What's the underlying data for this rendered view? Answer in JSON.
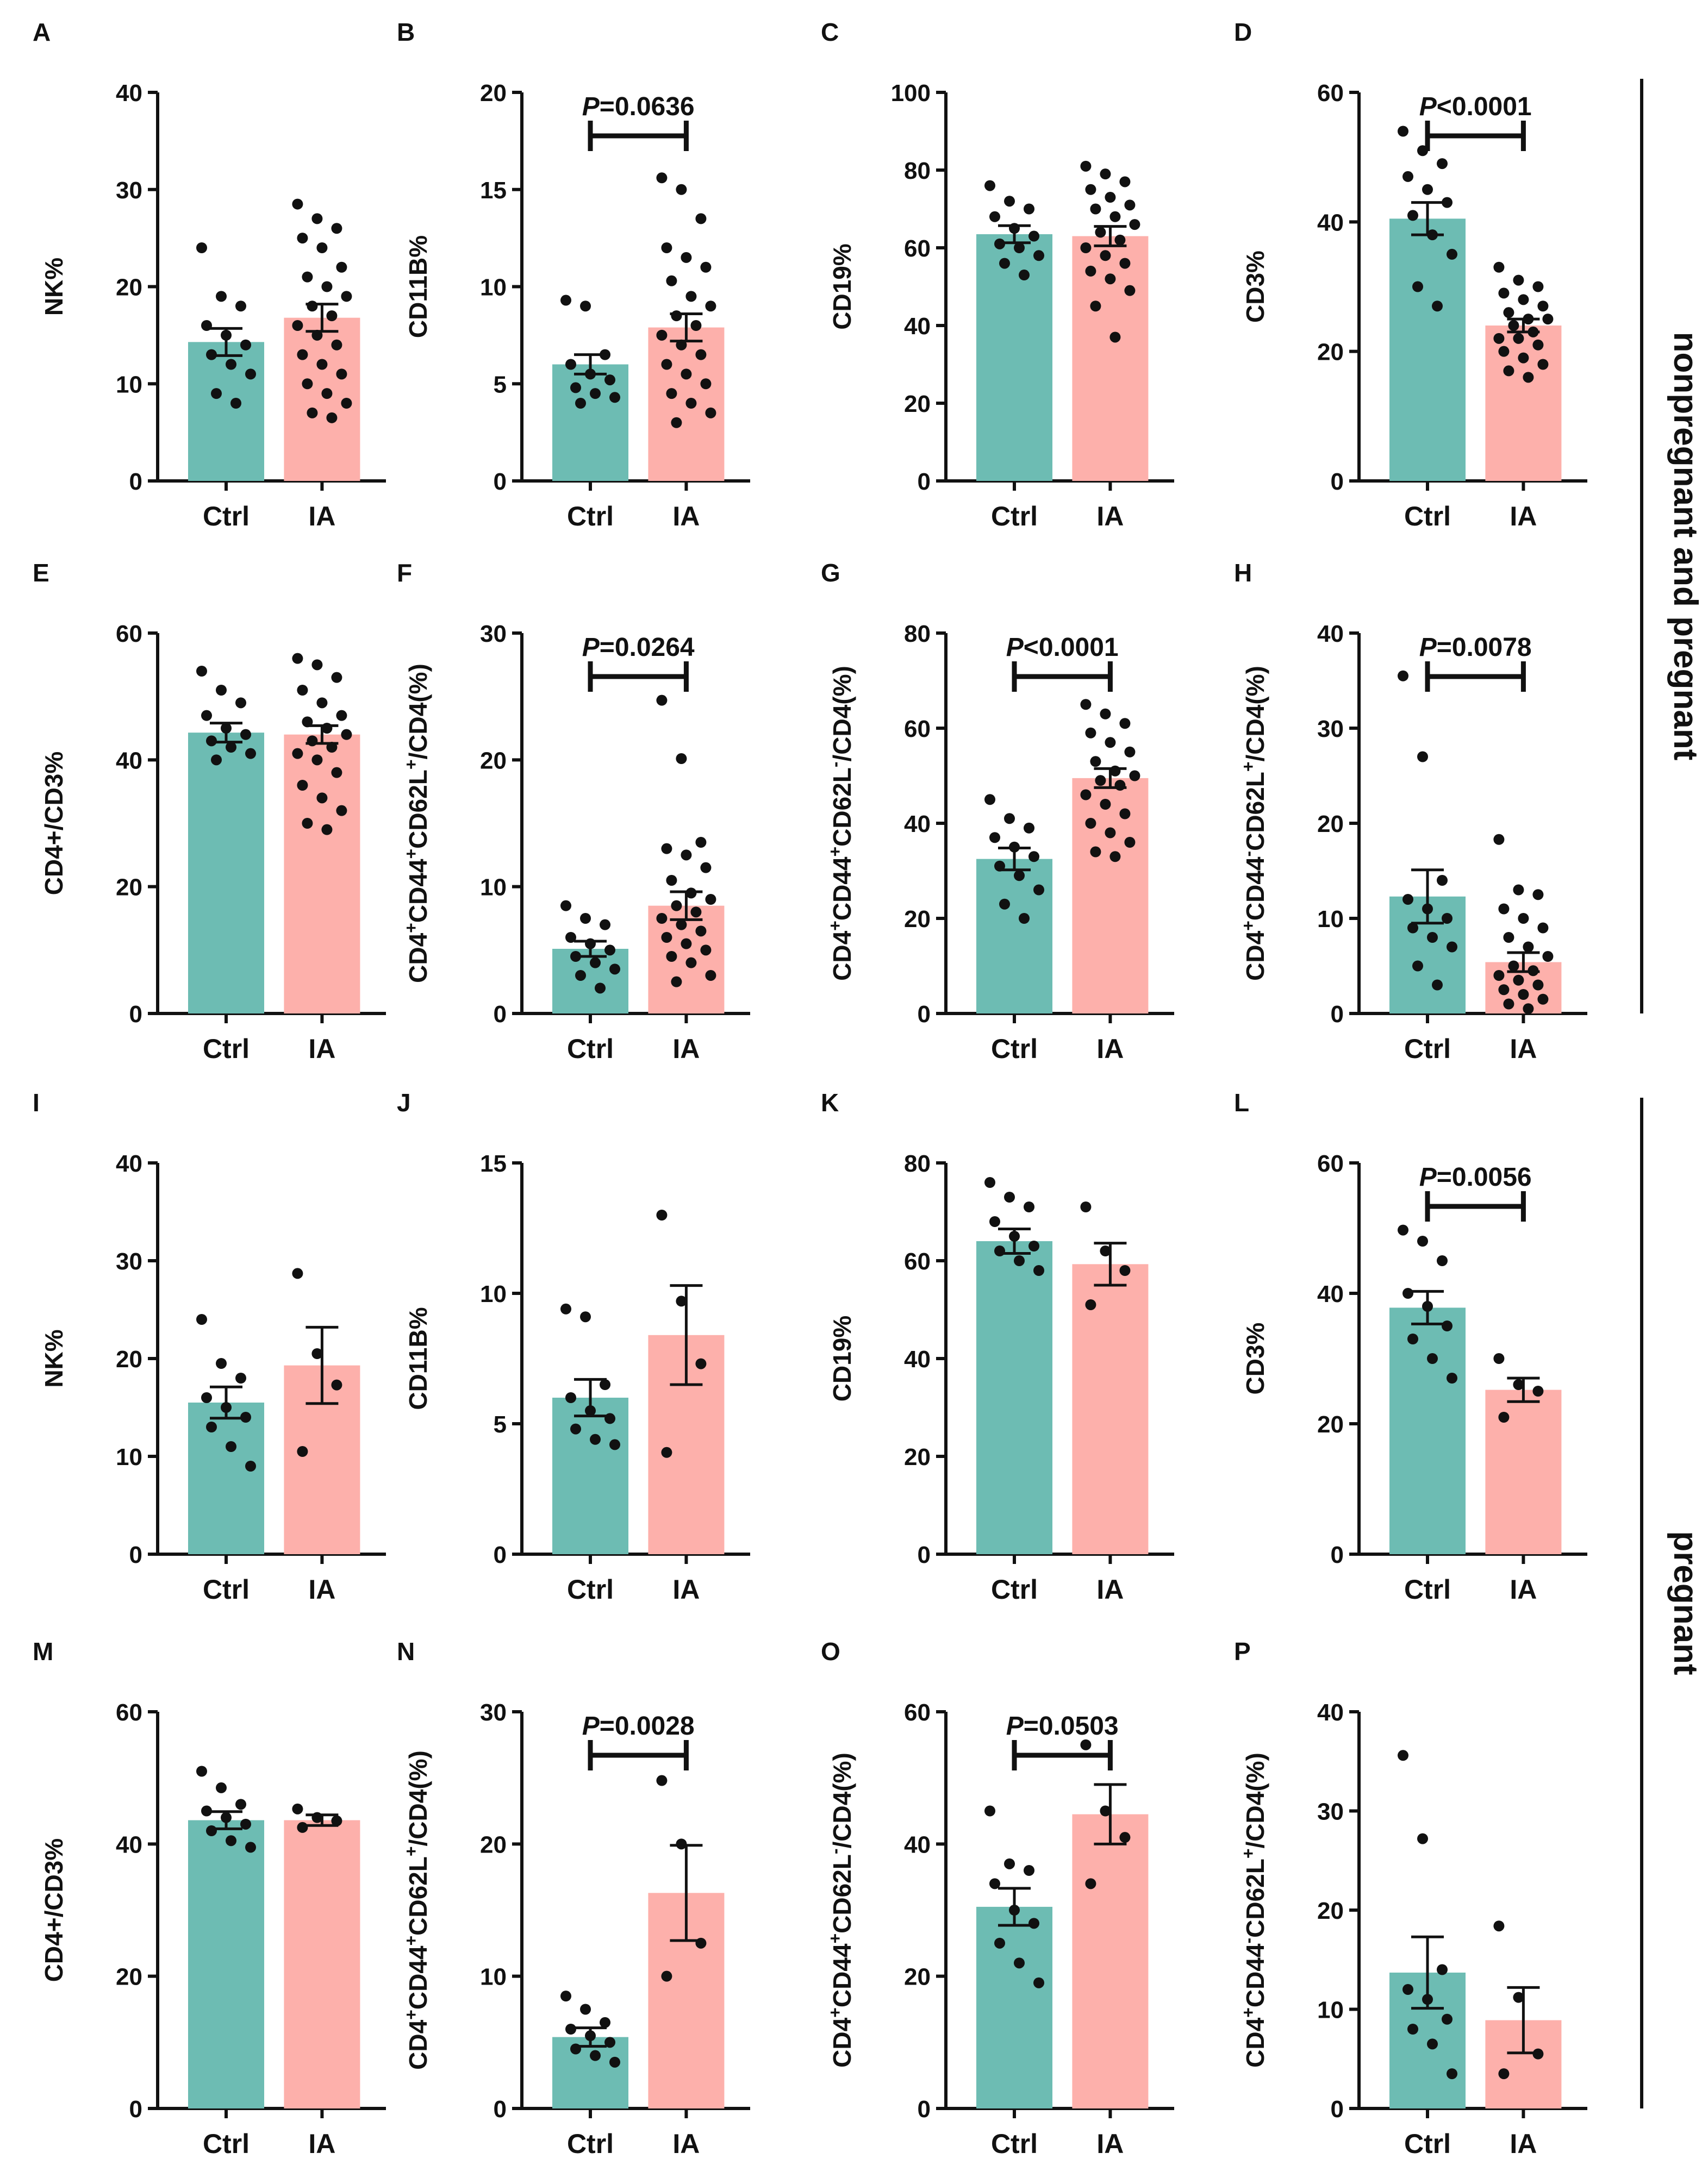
{
  "group_labels": [
    "nonpregnant and pregnant",
    "pregnant"
  ],
  "colors": {
    "ctrl": "#6dbcb3",
    "ia": "#fdb0ab",
    "ink": "#111111"
  },
  "chart_data": [
    {
      "type": "bar",
      "letter": "A",
      "ylabel": "NK%",
      "ylim": [
        0,
        40
      ],
      "yticks": [
        "0",
        "10",
        "20",
        "30",
        "40"
      ],
      "categories": [
        "Ctrl",
        "IA"
      ],
      "values": [
        14.3,
        16.8
      ],
      "sem": [
        1.4,
        1.4
      ],
      "points": [
        [
          24,
          19,
          18,
          16,
          15,
          14,
          13,
          12,
          11,
          9,
          8
        ],
        [
          28.5,
          27,
          26,
          25,
          24,
          22,
          21,
          20,
          19,
          18,
          17,
          16,
          15,
          14,
          13,
          12,
          11,
          10,
          9,
          8,
          7,
          6.5
        ]
      ],
      "significance": null
    },
    {
      "type": "bar",
      "letter": "B",
      "ylabel": "CD11B%",
      "ylim": [
        0,
        20
      ],
      "yticks": [
        "0",
        "5",
        "10",
        "15",
        "20"
      ],
      "categories": [
        "Ctrl",
        "IA"
      ],
      "values": [
        6.0,
        7.9
      ],
      "sem": [
        0.5,
        0.7
      ],
      "points": [
        [
          9.3,
          9.0,
          6.5,
          6.0,
          5.5,
          5.2,
          4.8,
          4.5,
          4.3,
          4.0
        ],
        [
          15.6,
          15.0,
          13.5,
          12.0,
          11.5,
          11.0,
          10.3,
          9.5,
          9.0,
          8.5,
          8.0,
          7.5,
          7.0,
          6.5,
          6.0,
          5.5,
          5.0,
          4.5,
          4.0,
          3.5,
          3.0
        ]
      ],
      "significance": "=0.0636"
    },
    {
      "type": "bar",
      "letter": "C",
      "ylabel": "CD19%",
      "ylim": [
        0,
        100
      ],
      "yticks": [
        "0",
        "20",
        "40",
        "60",
        "80",
        "100"
      ],
      "categories": [
        "Ctrl",
        "IA"
      ],
      "values": [
        63.5,
        63.0
      ],
      "sem": [
        2.2,
        2.5
      ],
      "points": [
        [
          76,
          72,
          70,
          68,
          65,
          63,
          61,
          60,
          58,
          56,
          53
        ],
        [
          81,
          79,
          77,
          75,
          73,
          71,
          70,
          68,
          66,
          64,
          62,
          60,
          58,
          56,
          54,
          52,
          49,
          45,
          37
        ]
      ],
      "significance": null
    },
    {
      "type": "bar",
      "letter": "D",
      "ylabel": "CD3%",
      "ylim": [
        0,
        60
      ],
      "yticks": [
        "0",
        "20",
        "40",
        "60"
      ],
      "categories": [
        "Ctrl",
        "IA"
      ],
      "values": [
        40.5,
        24.0
      ],
      "sem": [
        2.5,
        1.0
      ],
      "points": [
        [
          54,
          51,
          49,
          47,
          45,
          43,
          41,
          38,
          35,
          30,
          27
        ],
        [
          33,
          31,
          30,
          29,
          28,
          27,
          26,
          25,
          25,
          24,
          23,
          22,
          22,
          21,
          20,
          19,
          18,
          17,
          16
        ]
      ],
      "significance": "<0.0001"
    },
    {
      "type": "bar",
      "letter": "E",
      "ylabel": "CD4+/CD3%",
      "ylim": [
        0,
        60
      ],
      "yticks": [
        "0",
        "20",
        "40",
        "60"
      ],
      "categories": [
        "Ctrl",
        "IA"
      ],
      "values": [
        44.3,
        44.0
      ],
      "sem": [
        1.5,
        1.4
      ],
      "points": [
        [
          54,
          51,
          49,
          47,
          45,
          44,
          43,
          42,
          41,
          40
        ],
        [
          56,
          55,
          53,
          51,
          49,
          47,
          46,
          45,
          44,
          43,
          42,
          41,
          40,
          38,
          36,
          34,
          32,
          30,
          29
        ]
      ],
      "significance": null
    },
    {
      "type": "bar",
      "letter": "F",
      "ylabel": "CD4+CD44+CD62L+/CD4(%)",
      "ylim": [
        0,
        30
      ],
      "yticks": [
        "0",
        "10",
        "20",
        "30"
      ],
      "categories": [
        "Ctrl",
        "IA"
      ],
      "values": [
        5.1,
        8.5
      ],
      "sem": [
        0.6,
        1.1
      ],
      "points": [
        [
          8.5,
          7.5,
          7.0,
          6.0,
          5.5,
          5.0,
          4.5,
          4.0,
          3.5,
          3.0,
          2.0
        ],
        [
          24.7,
          20.1,
          13.5,
          13.0,
          12.5,
          11.5,
          10.5,
          9.5,
          9.0,
          8.5,
          8.0,
          7.5,
          7.0,
          6.5,
          6.0,
          5.5,
          5.0,
          4.5,
          4.0,
          3.0,
          2.5
        ]
      ],
      "significance": "=0.0264"
    },
    {
      "type": "bar",
      "letter": "G",
      "ylabel": "CD4+CD44+CD62L-/CD4(%)",
      "ylim": [
        0,
        80
      ],
      "yticks": [
        "0",
        "20",
        "40",
        "60",
        "80"
      ],
      "categories": [
        "Ctrl",
        "IA"
      ],
      "values": [
        32.5,
        49.5
      ],
      "sem": [
        2.3,
        2.0
      ],
      "points": [
        [
          45,
          41,
          39,
          37,
          35,
          33,
          31,
          29,
          26,
          23,
          20
        ],
        [
          65,
          63,
          61,
          59,
          57,
          55,
          53,
          51,
          50,
          49,
          48,
          46,
          44,
          42,
          40,
          38,
          36,
          34,
          33
        ]
      ],
      "significance": "<0.0001"
    },
    {
      "type": "bar",
      "letter": "H",
      "ylabel": "CD4+CD44-CD62L+/CD4(%)",
      "ylim": [
        0,
        40
      ],
      "yticks": [
        "0",
        "10",
        "20",
        "30",
        "40"
      ],
      "categories": [
        "Ctrl",
        "IA"
      ],
      "values": [
        12.3,
        5.4
      ],
      "sem": [
        2.8,
        1.0
      ],
      "points": [
        [
          35.5,
          27,
          14,
          12,
          11,
          10,
          9,
          8,
          7,
          5,
          3
        ],
        [
          18.3,
          13,
          12.5,
          11,
          10,
          9,
          8,
          7,
          6,
          5,
          4.5,
          4,
          3.5,
          3,
          2.5,
          2,
          1.5,
          1,
          0.5
        ]
      ],
      "significance": "=0.0078"
    },
    {
      "type": "bar",
      "letter": "I",
      "ylabel": "NK%",
      "ylim": [
        0,
        40
      ],
      "yticks": [
        "0",
        "10",
        "20",
        "30",
        "40"
      ],
      "categories": [
        "Ctrl",
        "IA"
      ],
      "values": [
        15.5,
        19.3
      ],
      "sem": [
        1.6,
        3.9
      ],
      "points": [
        [
          24,
          19.5,
          18,
          16,
          15,
          14,
          13,
          11,
          9
        ],
        [
          28.7,
          20.5,
          17.3,
          10.5
        ]
      ],
      "significance": null
    },
    {
      "type": "bar",
      "letter": "J",
      "ylabel": "CD11B%",
      "ylim": [
        0,
        15
      ],
      "yticks": [
        "0",
        "5",
        "10",
        "15"
      ],
      "categories": [
        "Ctrl",
        "IA"
      ],
      "values": [
        6.0,
        8.4
      ],
      "sem": [
        0.7,
        1.9
      ],
      "points": [
        [
          9.4,
          9.1,
          6.5,
          6.0,
          5.5,
          5.2,
          4.8,
          4.4,
          4.2
        ],
        [
          13.0,
          9.7,
          7.3,
          3.9
        ]
      ],
      "significance": null
    },
    {
      "type": "bar",
      "letter": "K",
      "ylabel": "CD19%",
      "ylim": [
        0,
        80
      ],
      "yticks": [
        "0",
        "20",
        "40",
        "60",
        "80"
      ],
      "categories": [
        "Ctrl",
        "IA"
      ],
      "values": [
        64.0,
        59.3
      ],
      "sem": [
        2.5,
        4.3
      ],
      "points": [
        [
          76,
          73,
          71,
          68,
          65,
          63,
          62,
          60,
          58
        ],
        [
          71,
          62,
          58,
          51
        ]
      ],
      "significance": null
    },
    {
      "type": "bar",
      "letter": "L",
      "ylabel": "CD3%",
      "ylim": [
        0,
        60
      ],
      "yticks": [
        "0",
        "20",
        "40",
        "60"
      ],
      "categories": [
        "Ctrl",
        "IA"
      ],
      "values": [
        37.8,
        25.2
      ],
      "sem": [
        2.5,
        1.8
      ],
      "points": [
        [
          49.7,
          48,
          45,
          40,
          38,
          35,
          33,
          30,
          27
        ],
        [
          30,
          26,
          25,
          21
        ]
      ],
      "significance": "=0.0056"
    },
    {
      "type": "bar",
      "letter": "M",
      "ylabel": "CD4+/CD3%",
      "ylim": [
        0,
        60
      ],
      "yticks": [
        "0",
        "20",
        "40",
        "60"
      ],
      "categories": [
        "Ctrl",
        "IA"
      ],
      "values": [
        43.6,
        43.6
      ],
      "sem": [
        1.3,
        0.8
      ],
      "points": [
        [
          51,
          48.5,
          46,
          45,
          44,
          43,
          42,
          40.5,
          39.5
        ],
        [
          45.3,
          44,
          43.5,
          42.5
        ]
      ],
      "significance": null
    },
    {
      "type": "bar",
      "letter": "N",
      "ylabel": "CD4+CD44+CD62L+/CD4(%)",
      "ylim": [
        0,
        30
      ],
      "yticks": [
        "0",
        "10",
        "20",
        "30"
      ],
      "categories": [
        "Ctrl",
        "IA"
      ],
      "values": [
        5.4,
        16.3
      ],
      "sem": [
        0.7,
        3.6
      ],
      "points": [
        [
          8.5,
          7.5,
          6.5,
          6.0,
          5.5,
          5.0,
          4.5,
          4.0,
          3.5
        ],
        [
          24.8,
          20.0,
          12.5,
          10.0
        ]
      ],
      "significance": "=0.0028"
    },
    {
      "type": "bar",
      "letter": "O",
      "ylabel": "CD4+CD44+CD62L-/CD4(%)",
      "ylim": [
        0,
        60
      ],
      "yticks": [
        "0",
        "20",
        "40",
        "60"
      ],
      "categories": [
        "Ctrl",
        "IA"
      ],
      "values": [
        30.5,
        44.5
      ],
      "sem": [
        2.8,
        4.5
      ],
      "points": [
        [
          45,
          37,
          36,
          34,
          30,
          28,
          25,
          22,
          19
        ],
        [
          55,
          45,
          41,
          34
        ]
      ],
      "significance": "=0.0503"
    },
    {
      "type": "bar",
      "letter": "P",
      "ylabel": "CD4+CD44-CD62L+/CD4(%)",
      "ylim": [
        0,
        40
      ],
      "yticks": [
        "0",
        "10",
        "20",
        "30",
        "40"
      ],
      "categories": [
        "Ctrl",
        "IA"
      ],
      "values": [
        13.7,
        8.9
      ],
      "sem": [
        3.6,
        3.3
      ],
      "points": [
        [
          35.6,
          27.2,
          14,
          12,
          11,
          9,
          8,
          6.5,
          3.5
        ],
        [
          18.4,
          11.2,
          5.5,
          3.5
        ]
      ],
      "significance": null
    }
  ]
}
